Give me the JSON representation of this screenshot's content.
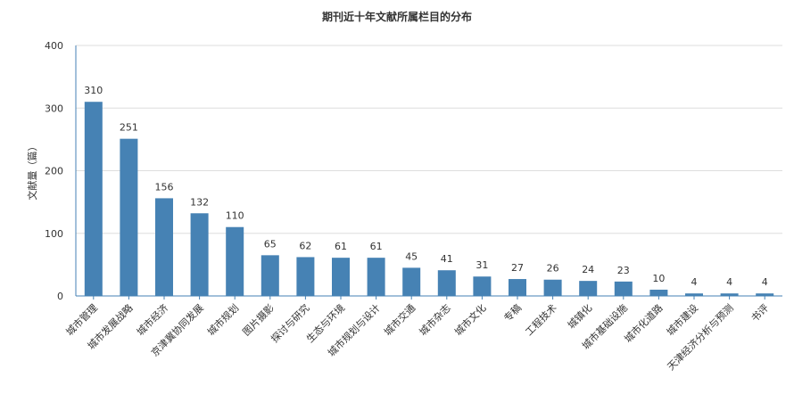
{
  "chart_data": {
    "type": "bar",
    "title": "期刊近十年文献所属栏目的分布",
    "xlabel": "",
    "ylabel": "文献量（篇）",
    "ylim": [
      0,
      400
    ],
    "yticks": [
      0,
      100,
      200,
      300,
      400
    ],
    "grid": true,
    "bar_color": "#4682b4",
    "categories": [
      "城市管理",
      "城市发展战略",
      "城市经济",
      "京津冀协同发展",
      "城市规划",
      "图片摄影",
      "探讨与研究",
      "生态与环境",
      "城市规划与设计",
      "城市交通",
      "城市杂志",
      "城市文化",
      "专稿",
      "工程技术",
      "城镇化",
      "城市基础设施",
      "城市化道路",
      "城市建设",
      "天津经济分析与预测",
      "书评"
    ],
    "values": [
      310,
      251,
      156,
      132,
      110,
      65,
      62,
      61,
      61,
      45,
      41,
      31,
      27,
      26,
      24,
      23,
      10,
      4,
      4,
      4
    ]
  }
}
